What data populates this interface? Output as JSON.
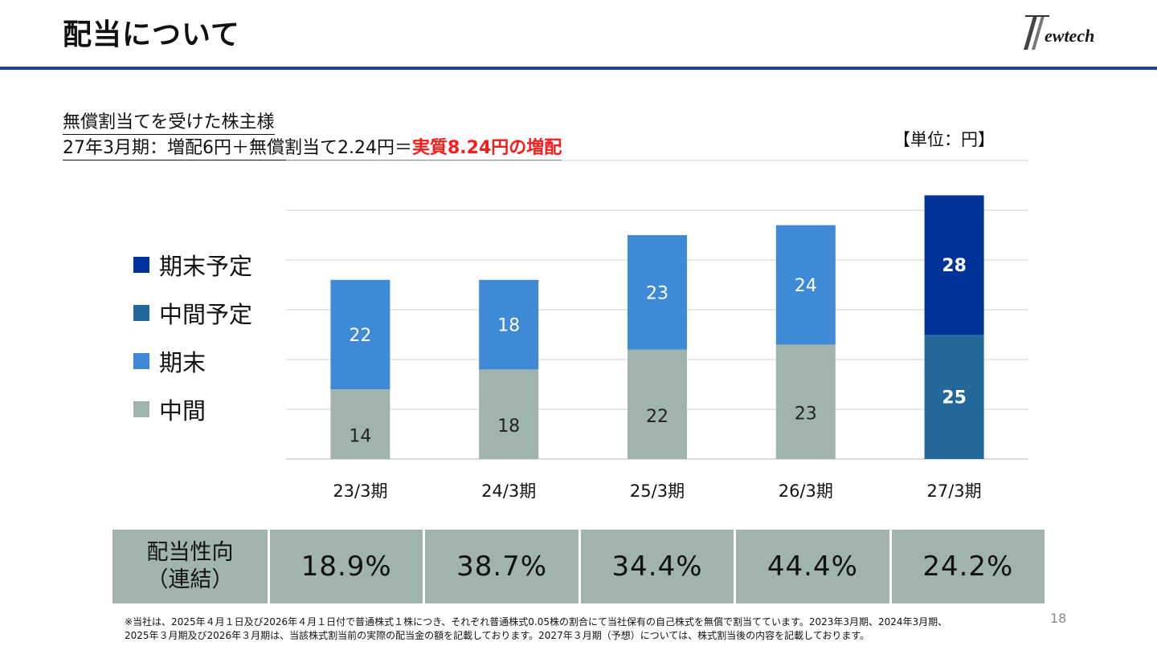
{
  "slide": {
    "title": "配当について",
    "logo_text": "Newtech",
    "page_number": "18"
  },
  "subtitle": {
    "line1": "無償割当てを受けた株主様",
    "line2_prefix": "27年3月期：増配6円＋無償割当て2.24円＝",
    "line2_highlight": "実質8.24円の増配"
  },
  "unit_label": "【単位：円】",
  "legend": [
    {
      "label": "期末予定",
      "color": "#003399"
    },
    {
      "label": "中間予定",
      "color": "#23689b"
    },
    {
      "label": "期末",
      "color": "#3f8ad6"
    },
    {
      "label": "中間",
      "color": "#a1b3ad"
    }
  ],
  "chart_data": {
    "type": "bar",
    "stacked": true,
    "categories": [
      "23/3期",
      "24/3期",
      "25/3期",
      "26/3期",
      "27/3期"
    ],
    "series": [
      {
        "name": "中間",
        "values": [
          14,
          18,
          22,
          23,
          null
        ],
        "color": "#a1b3ad"
      },
      {
        "name": "期末",
        "values": [
          22,
          18,
          23,
          24,
          null
        ],
        "color": "#3f8ad6"
      },
      {
        "name": "中間予定",
        "values": [
          null,
          null,
          null,
          null,
          25
        ],
        "color": "#23689b"
      },
      {
        "name": "期末予定",
        "values": [
          null,
          null,
          null,
          null,
          28
        ],
        "color": "#003399"
      }
    ],
    "ylim": [
      0,
      60
    ],
    "grid": true,
    "legend_position": "left"
  },
  "payout": {
    "header_line1": "配当性向",
    "header_line2": "（連結）",
    "values": [
      "18.9%",
      "38.7%",
      "34.4%",
      "44.4%",
      "24.2%"
    ]
  },
  "footnote": {
    "line1": "※当社は、2025年４月１日及び2026年４月１日付で普通株式１株につき、それぞれ普通株式0.05株の割合にて当社保有の自己株式を無償で割当てています。2023年3月期、2024年3月期、",
    "line2": "2025年３月期及び2026年３月期は、当該株式割当前の実際の配当金の額を記載しております。2027年３月期（予想）については、株式割当後の内容を記載しております。"
  }
}
